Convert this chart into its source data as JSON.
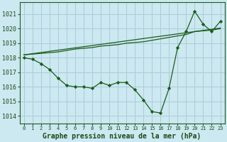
{
  "background_color": "#cce8f0",
  "grid_color": "#aaccda",
  "line_color": "#1a5c1a",
  "marker_color": "#1a5c1a",
  "title": "Graphe pression niveau de la mer (hPa)",
  "ylim": [
    1013.5,
    1021.8
  ],
  "xlim": [
    -0.5,
    23.5
  ],
  "series1": [
    1018.0,
    1017.9,
    1017.6,
    1017.2,
    1016.6,
    1016.1,
    1016.0,
    1016.0,
    1015.9,
    1016.3,
    1016.1,
    1016.3,
    1016.3,
    1015.8,
    1015.1,
    1014.3,
    1014.2,
    1015.9,
    1018.7,
    1019.8,
    1021.2,
    1020.3,
    1019.8,
    1020.5
  ],
  "series2": [
    1018.2,
    1018.25,
    1018.3,
    1018.35,
    1018.4,
    1018.5,
    1018.6,
    1018.65,
    1018.7,
    1018.8,
    1018.85,
    1018.9,
    1019.0,
    1019.05,
    1019.1,
    1019.2,
    1019.3,
    1019.4,
    1019.5,
    1019.6,
    1019.8,
    1019.85,
    1019.9,
    1020.0
  ],
  "series3": [
    1018.2,
    1018.28,
    1018.36,
    1018.44,
    1018.52,
    1018.6,
    1018.68,
    1018.76,
    1018.84,
    1018.92,
    1019.0,
    1019.08,
    1019.16,
    1019.24,
    1019.32,
    1019.4,
    1019.48,
    1019.56,
    1019.64,
    1019.72,
    1019.8,
    1019.88,
    1019.96,
    1020.04
  ],
  "xtick_fontsize": 5.0,
  "ytick_fontsize": 6.0,
  "title_fontsize": 7.0
}
